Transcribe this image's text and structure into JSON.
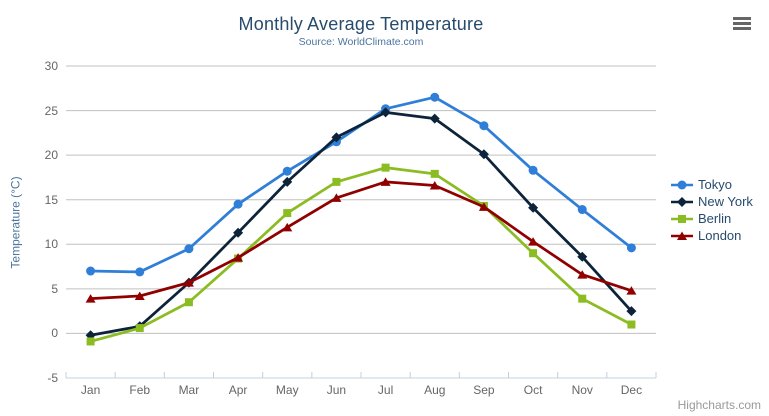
{
  "header": {
    "title": "Monthly Average Temperature",
    "subtitle": "Source: WorldClimate.com"
  },
  "chart_data": {
    "type": "line",
    "title": "Monthly Average Temperature",
    "subtitle": "Source: WorldClimate.com",
    "categories": [
      "Jan",
      "Feb",
      "Mar",
      "Apr",
      "May",
      "Jun",
      "Jul",
      "Aug",
      "Sep",
      "Oct",
      "Nov",
      "Dec"
    ],
    "series": [
      {
        "name": "Tokyo",
        "color": "#2f7ed8",
        "marker": "circle",
        "values": [
          7.0,
          6.9,
          9.5,
          14.5,
          18.2,
          21.5,
          25.2,
          26.5,
          23.3,
          18.3,
          13.9,
          9.6
        ]
      },
      {
        "name": "New York",
        "color": "#0d233a",
        "marker": "diamond",
        "values": [
          -0.2,
          0.8,
          5.7,
          11.3,
          17.0,
          22.0,
          24.8,
          24.1,
          20.1,
          14.1,
          8.6,
          2.5
        ]
      },
      {
        "name": "Berlin",
        "color": "#8bbc21",
        "marker": "square",
        "values": [
          -0.9,
          0.6,
          3.5,
          8.4,
          13.5,
          17.0,
          18.6,
          17.9,
          14.3,
          9.0,
          3.9,
          1.0
        ]
      },
      {
        "name": "London",
        "color": "#910000",
        "marker": "triangle",
        "values": [
          3.9,
          4.2,
          5.7,
          8.5,
          11.9,
          15.2,
          17.0,
          16.6,
          14.2,
          10.3,
          6.6,
          4.8
        ]
      }
    ],
    "xlabel": "",
    "ylabel": "Temperature (°C)",
    "ylim": [
      -5,
      30
    ],
    "ytick_interval": 5,
    "yticks": [
      30,
      25,
      20,
      15,
      10,
      5,
      0,
      -5
    ],
    "grid": "horizontal-only",
    "legend_position": "right"
  },
  "colors": {
    "title": "#274b6d",
    "subtitle": "#4d759e",
    "axis_label": "#666666",
    "axis_title": "#4d759e",
    "grid_line": "#c0c0c0",
    "axis_line": "#c0d0e0",
    "legend_text": "#274b6d",
    "credits": "#999999",
    "background": "#ffffff",
    "menu_icon": "#666666"
  },
  "menu": {
    "icon": "hamburger-icon"
  },
  "credits": {
    "text": "Highcharts.com"
  }
}
